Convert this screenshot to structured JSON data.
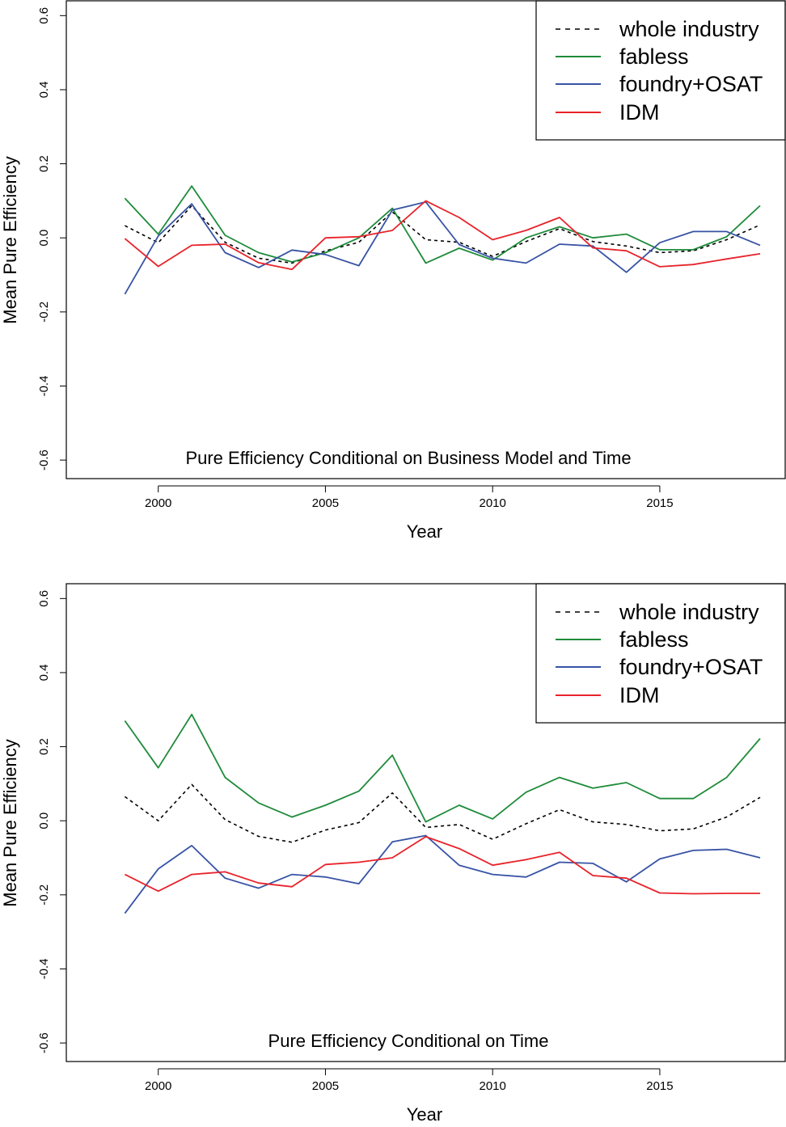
{
  "chart_data": [
    {
      "type": "line",
      "title": "Pure Efficiency Conditional on Business Model and Time",
      "xlabel": "Year",
      "ylabel": "Mean Pure Efficiency",
      "xlim": [
        1997.25,
        2018.75
      ],
      "ylim": [
        -0.65,
        0.64
      ],
      "x_ticks": [
        2000,
        2005,
        2010,
        2015
      ],
      "x_tick_labels": [
        "2000",
        "2005",
        "2010",
        "2015"
      ],
      "y_ticks": [
        -0.6,
        -0.4,
        -0.2,
        0.0,
        0.2,
        0.4,
        0.6
      ],
      "y_tick_labels": [
        "-0.6",
        "-0.4",
        "-0.2",
        "0.0",
        "0.2",
        "0.4",
        "0.6"
      ],
      "legend_position": "top-right",
      "x": [
        1999,
        2000,
        2001,
        2002,
        2003,
        2004,
        2005,
        2006,
        2007,
        2008,
        2009,
        2010,
        2011,
        2012,
        2013,
        2014,
        2015,
        2016,
        2017,
        2018
      ],
      "series": [
        {
          "name": "whole industry",
          "color": "#000000",
          "dash": "dashed",
          "values": [
            0.033,
            -0.013,
            0.087,
            -0.012,
            -0.055,
            -0.068,
            -0.035,
            -0.012,
            0.07,
            -0.005,
            -0.012,
            -0.05,
            -0.01,
            0.025,
            -0.01,
            -0.022,
            -0.04,
            -0.035,
            -0.005,
            0.035
          ]
        },
        {
          "name": "fabless",
          "color": "#1e8b3a",
          "dash": "solid",
          "values": [
            0.107,
            0.01,
            0.14,
            0.007,
            -0.04,
            -0.065,
            -0.04,
            0.0,
            0.08,
            -0.068,
            -0.028,
            -0.06,
            0.0,
            0.03,
            0.0,
            0.01,
            -0.032,
            -0.032,
            0.003,
            0.087
          ]
        },
        {
          "name": "foundry+OSAT",
          "color": "#3753a5",
          "dash": "solid",
          "values": [
            -0.152,
            0.005,
            0.092,
            -0.04,
            -0.08,
            -0.033,
            -0.045,
            -0.075,
            0.075,
            0.097,
            -0.018,
            -0.055,
            -0.068,
            -0.017,
            -0.022,
            -0.093,
            -0.013,
            0.017,
            0.017,
            -0.02
          ]
        },
        {
          "name": "IDM",
          "color": "#e8232a",
          "dash": "solid",
          "values": [
            -0.002,
            -0.077,
            -0.02,
            -0.017,
            -0.067,
            -0.085,
            0.0,
            0.003,
            0.02,
            0.1,
            0.055,
            -0.005,
            0.02,
            0.055,
            -0.027,
            -0.035,
            -0.078,
            -0.072,
            -0.057,
            -0.043
          ]
        }
      ]
    },
    {
      "type": "line",
      "title": "Pure Efficiency Conditional on Time",
      "xlabel": "Year",
      "ylabel": "Mean Pure Efficiency",
      "xlim": [
        1997.25,
        2018.75
      ],
      "ylim": [
        -0.65,
        0.64
      ],
      "x_ticks": [
        2000,
        2005,
        2010,
        2015
      ],
      "x_tick_labels": [
        "2000",
        "2005",
        "2010",
        "2015"
      ],
      "y_ticks": [
        -0.6,
        -0.4,
        -0.2,
        0.0,
        0.2,
        0.4,
        0.6
      ],
      "y_tick_labels": [
        "-0.6",
        "-0.4",
        "-0.2",
        "0.0",
        "0.2",
        "0.4",
        "0.6"
      ],
      "legend_position": "top-right",
      "x": [
        1999,
        2000,
        2001,
        2002,
        2003,
        2004,
        2005,
        2006,
        2007,
        2008,
        2009,
        2010,
        2011,
        2012,
        2013,
        2014,
        2015,
        2016,
        2017,
        2018
      ],
      "series": [
        {
          "name": "whole industry",
          "color": "#000000",
          "dash": "dashed",
          "values": [
            0.065,
            0.0,
            0.098,
            0.003,
            -0.042,
            -0.058,
            -0.025,
            -0.005,
            0.075,
            -0.018,
            -0.01,
            -0.05,
            -0.008,
            0.03,
            -0.003,
            -0.01,
            -0.027,
            -0.022,
            0.01,
            0.063
          ]
        },
        {
          "name": "fabless",
          "color": "#1e8b3a",
          "dash": "solid",
          "values": [
            0.27,
            0.143,
            0.287,
            0.117,
            0.048,
            0.01,
            0.042,
            0.08,
            0.177,
            -0.003,
            0.042,
            0.005,
            0.077,
            0.117,
            0.088,
            0.103,
            0.06,
            0.06,
            0.117,
            0.222
          ]
        },
        {
          "name": "foundry+OSAT",
          "color": "#3753a5",
          "dash": "solid",
          "values": [
            -0.25,
            -0.13,
            -0.067,
            -0.155,
            -0.182,
            -0.145,
            -0.152,
            -0.17,
            -0.057,
            -0.04,
            -0.12,
            -0.145,
            -0.152,
            -0.112,
            -0.115,
            -0.165,
            -0.103,
            -0.08,
            -0.077,
            -0.1
          ]
        },
        {
          "name": "IDM",
          "color": "#e8232a",
          "dash": "solid",
          "values": [
            -0.145,
            -0.19,
            -0.145,
            -0.138,
            -0.168,
            -0.178,
            -0.118,
            -0.112,
            -0.1,
            -0.043,
            -0.075,
            -0.12,
            -0.105,
            -0.085,
            -0.148,
            -0.155,
            -0.195,
            -0.197,
            -0.196,
            -0.196
          ]
        }
      ]
    }
  ]
}
